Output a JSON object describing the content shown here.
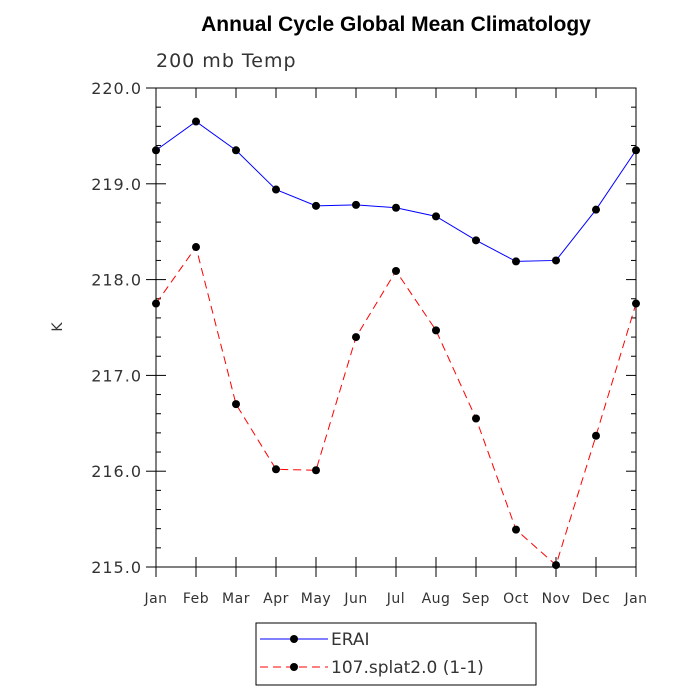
{
  "chart_data": {
    "type": "line",
    "title": "Annual Cycle Global Mean Climatology",
    "subtitle": "200 mb Temp",
    "xlabel": "",
    "ylabel": "K",
    "categories": [
      "Jan",
      "Feb",
      "Mar",
      "Apr",
      "May",
      "Jun",
      "Jul",
      "Aug",
      "Sep",
      "Oct",
      "Nov",
      "Dec",
      "Jan"
    ],
    "ylim": [
      215.0,
      220.0
    ],
    "yticks": [
      "215.0",
      "216.0",
      "217.0",
      "218.0",
      "219.0",
      "220.0"
    ],
    "grid": false,
    "legend_position": "bottom",
    "series": [
      {
        "name": "ERAI",
        "color": "#0000ff",
        "line_style": "solid",
        "marker": "circle",
        "values": [
          219.35,
          219.65,
          219.35,
          218.94,
          218.77,
          218.78,
          218.75,
          218.66,
          218.41,
          218.19,
          218.2,
          218.73,
          219.35
        ]
      },
      {
        "name": "107.splat2.0 (1-1)",
        "color": "#ff0000",
        "line_style": "dashed",
        "marker": "circle",
        "values": [
          217.75,
          218.34,
          216.7,
          216.02,
          216.01,
          217.4,
          218.09,
          217.47,
          216.55,
          215.39,
          215.02,
          216.37,
          217.75
        ]
      }
    ]
  }
}
